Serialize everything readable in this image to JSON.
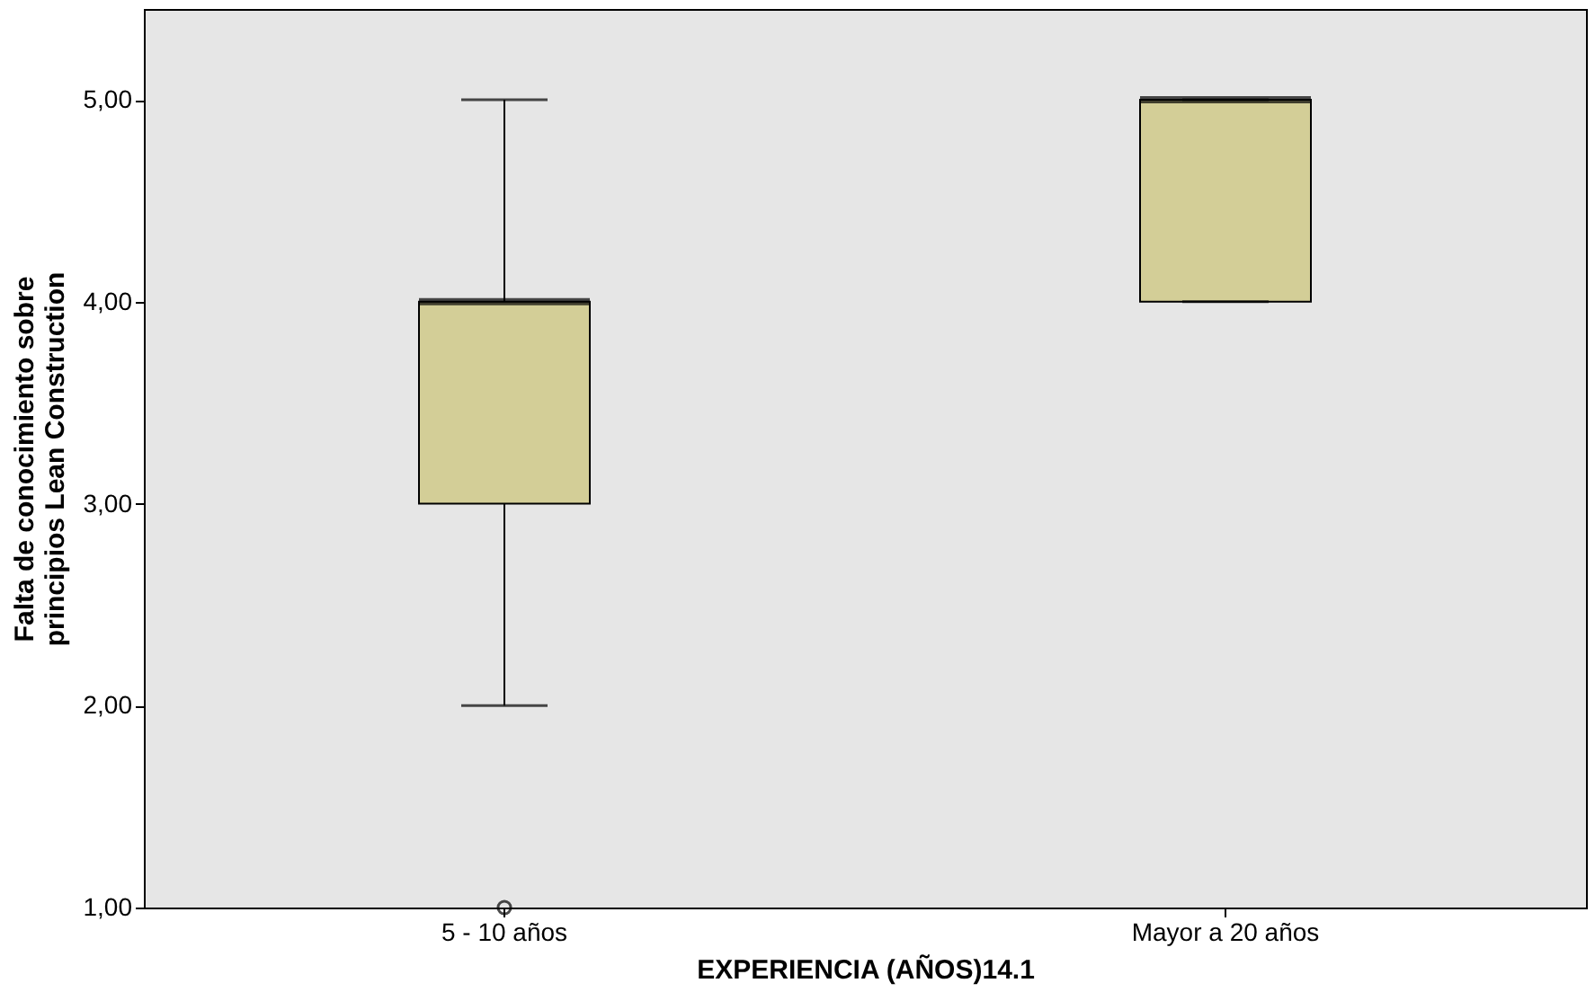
{
  "chart_data": {
    "type": "box",
    "xlabel": "EXPERIENCIA (AÑOS)14.1",
    "ylabel": "Falta de conocimiento sobre\nprincipios Lean Construction",
    "categories": [
      "5 - 10 años",
      "Mayor a 20 años"
    ],
    "boxes": [
      {
        "low": 2,
        "q1": 3,
        "median": 4,
        "q3": 4,
        "high": 5,
        "outliers": [
          1
        ]
      },
      {
        "low": 4,
        "q1": 4,
        "median": 5,
        "q3": 5,
        "high": 5
      }
    ],
    "color": "#d3ce97",
    "ylim": [
      1,
      5.45
    ],
    "yticks": [
      {
        "value": 1,
        "label": "1,00"
      },
      {
        "value": 2,
        "label": "2,00"
      },
      {
        "value": 3,
        "label": "3,00"
      },
      {
        "value": 4,
        "label": "4,00"
      },
      {
        "value": 5,
        "label": "5,00"
      }
    ],
    "grid": false
  }
}
